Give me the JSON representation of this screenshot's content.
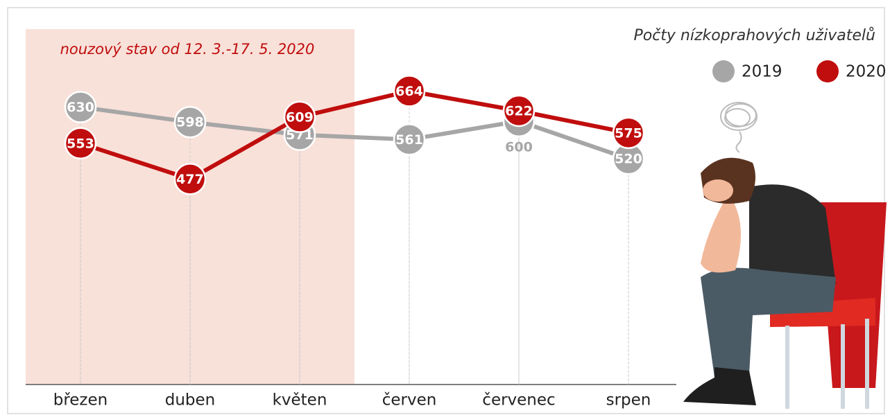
{
  "chart_data": {
    "type": "line",
    "title": "Počty nízkoprahových uživatelů",
    "annotation": "nouzový stav od 12. 3.-17. 5. 2020",
    "categories": [
      "březen",
      "duben",
      "květen",
      "červen",
      "červenec",
      "srpen"
    ],
    "series": [
      {
        "name": "2019",
        "color": "#a6a6a6",
        "values": [
          630,
          598,
          571,
          561,
          600,
          520
        ]
      },
      {
        "name": "2020",
        "color": "#c00d0d",
        "values": [
          553,
          477,
          609,
          664,
          622,
          575
        ]
      }
    ],
    "ylim": [
      40,
      700
    ],
    "grid": false
  }
}
